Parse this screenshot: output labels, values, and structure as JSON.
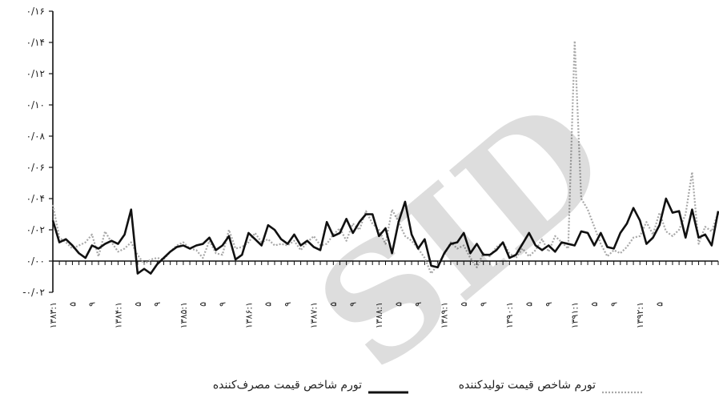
{
  "chart_data": {
    "type": "line",
    "title": "",
    "xlabel": "",
    "ylabel": "",
    "ylim": [
      -0.02,
      0.16
    ],
    "y_ticks": [
      "-۰/۰۲",
      "۰/۰۰",
      "۰/۰۲",
      "۰/۰۴",
      "۰/۰۶",
      "۰/۰۸",
      "۰/۱۰",
      "۰/۱۲",
      "۰/۱۴",
      "۰/۱۶"
    ],
    "y_tick_values": [
      -0.02,
      0,
      0.02,
      0.04,
      0.06,
      0.08,
      0.1,
      0.12,
      0.14,
      0.16
    ],
    "x_ticks": [
      {
        "i": 0,
        "label": "۱۳۸۳:۱"
      },
      {
        "i": 3,
        "label": "۵"
      },
      {
        "i": 6,
        "label": "۹"
      },
      {
        "i": 10,
        "label": "۱۳۸۴:۱"
      },
      {
        "i": 13,
        "label": "۵"
      },
      {
        "i": 16,
        "label": "۹"
      },
      {
        "i": 20,
        "label": "۱۳۸۵:۱"
      },
      {
        "i": 23,
        "label": "۵"
      },
      {
        "i": 26,
        "label": "۹"
      },
      {
        "i": 30,
        "label": "۱۳۸۶:۱"
      },
      {
        "i": 33,
        "label": "۵"
      },
      {
        "i": 36,
        "label": "۹"
      },
      {
        "i": 40,
        "label": "۱۳۸۷:۱"
      },
      {
        "i": 43,
        "label": "۵"
      },
      {
        "i": 46,
        "label": "۹"
      },
      {
        "i": 50,
        "label": "۱۳۸۸:۱"
      },
      {
        "i": 53,
        "label": "۵"
      },
      {
        "i": 56,
        "label": "۹"
      },
      {
        "i": 60,
        "label": "۱۳۸۹:۱"
      },
      {
        "i": 63,
        "label": "۵"
      },
      {
        "i": 66,
        "label": "۹"
      },
      {
        "i": 70,
        "label": "۱۳۹۰:۱"
      },
      {
        "i": 73,
        "label": "۵"
      },
      {
        "i": 76,
        "label": "۹"
      },
      {
        "i": 80,
        "label": "۱۳۹۱:۱"
      },
      {
        "i": 83,
        "label": "۵"
      },
      {
        "i": 86,
        "label": "۹"
      },
      {
        "i": 90,
        "label": "۱۳۹۲:۱"
      },
      {
        "i": 93,
        "label": "۵"
      }
    ],
    "series": [
      {
        "name": "تورم شاخص قیمت مصرف‌کننده",
        "color": "#111111",
        "style": "solid",
        "values": [
          0.026,
          0.012,
          0.014,
          0.01,
          0.005,
          0.002,
          0.01,
          0.008,
          0.011,
          0.013,
          0.011,
          0.017,
          0.033,
          -0.008,
          -0.005,
          -0.008,
          -0.002,
          0.002,
          0.006,
          0.009,
          0.01,
          0.008,
          0.01,
          0.011,
          0.015,
          0.007,
          0.01,
          0.016,
          0.001,
          0.004,
          0.018,
          0.014,
          0.01,
          0.023,
          0.02,
          0.014,
          0.011,
          0.017,
          0.01,
          0.013,
          0.009,
          0.007,
          0.025,
          0.016,
          0.018,
          0.027,
          0.018,
          0.025,
          0.03,
          0.03,
          0.016,
          0.021,
          0.005,
          0.025,
          0.038,
          0.017,
          0.008,
          0.014,
          -0.003,
          -0.004,
          0.005,
          0.011,
          0.012,
          0.018,
          0.005,
          0.011,
          0.004,
          0.004,
          0.007,
          0.012,
          0.002,
          0.004,
          0.011,
          0.018,
          0.01,
          0.007,
          0.01,
          0.006,
          0.012,
          0.011,
          0.01,
          0.019,
          0.018,
          0.01,
          0.018,
          0.009,
          0.008,
          0.018,
          0.024,
          0.034,
          0.026,
          0.011,
          0.015,
          0.023,
          0.04,
          0.031,
          0.032,
          0.015,
          0.033,
          0.015,
          0.017,
          0.01,
          0.032
        ],
        "plot_values": [
          0.026,
          0.012,
          0.014,
          0.01,
          0.005,
          0.002,
          0.01,
          0.008,
          0.011,
          0.013,
          0.011,
          0.017,
          0.033,
          -0.008,
          -0.005,
          -0.008,
          -0.002,
          0.002,
          0.006,
          0.009,
          0.01,
          0.008,
          0.01,
          0.011,
          0.015,
          0.007,
          0.01,
          0.016,
          0.001,
          0.004,
          0.018,
          0.014,
          0.01,
          0.023,
          0.02,
          0.014,
          0.011,
          0.017,
          0.01,
          0.013,
          0.009,
          0.007,
          0.025,
          0.016,
          0.018,
          0.027,
          0.018,
          0.025,
          0.03,
          0.03,
          0.016,
          0.021,
          0.005,
          0.025,
          0.038,
          0.017,
          0.008,
          0.014,
          -0.003,
          -0.004,
          0.005,
          0.011,
          0.012,
          0.018,
          0.005,
          0.011,
          0.004,
          0.004,
          0.007,
          0.012,
          0.002,
          0.004,
          0.011,
          0.018,
          0.01,
          0.007,
          0.01,
          0.006,
          0.012,
          0.011,
          0.01,
          0.019,
          0.018,
          0.01,
          0.018,
          0.009,
          0.008,
          0.018,
          0.024,
          0.034,
          0.026,
          0.011,
          0.015,
          0.023,
          0.04,
          0.031,
          0.032,
          0.015,
          0.033,
          0.015,
          0.017,
          0.01,
          0.032
        ]
      },
      {
        "name": "تورم شاخص قیمت تولیدکننده",
        "color": "#a8a8a8",
        "style": "dotted",
        "values": [
          0.036,
          0.015,
          0.012,
          0.008,
          0.01,
          0.012,
          0.017,
          0.003,
          0.019,
          0.012,
          0.006,
          0.008,
          0.012,
          0.004,
          -0.002,
          0.001,
          0.002,
          0.001,
          0.006,
          0.01,
          0.012,
          0.008,
          0.007,
          0.002,
          0.013,
          0.005,
          0.004,
          0.02,
          0.008,
          0.009,
          0.012,
          0.018,
          0.012,
          0.014,
          0.01,
          0.011,
          0.01,
          0.013,
          0.007,
          0.012,
          0.016,
          0.01,
          0.011,
          0.017,
          0.021,
          0.013,
          0.024,
          0.02,
          0.032,
          0.024,
          0.02,
          0.011,
          0.033,
          0.025,
          0.016,
          0.013,
          0.008,
          0.002,
          -0.008,
          -0.002,
          0.004,
          0.012,
          0.008,
          0.01,
          0.002,
          -0.004,
          0.005,
          0.003,
          0.009,
          0.012,
          0.005,
          0.002,
          0.008,
          0.003,
          0.007,
          0.014,
          0.006,
          0.016,
          0.012,
          0.008,
          0.141,
          0.04,
          0.033,
          0.022,
          0.011,
          0.003,
          0.007,
          0.005,
          0.009,
          0.015,
          0.016,
          0.025,
          0.017,
          0.031,
          0.019,
          0.016,
          0.02,
          0.03,
          0.057,
          0.011,
          0.022,
          0.019,
          0.031,
          0.026
        ],
        "plot_values": [
          0.036,
          0.015,
          0.012,
          0.008,
          0.01,
          0.012,
          0.017,
          0.003,
          0.019,
          0.012,
          0.006,
          0.008,
          0.012,
          0.004,
          -0.002,
          0.001,
          0.002,
          0.001,
          0.006,
          0.01,
          0.012,
          0.008,
          0.007,
          0.002,
          0.013,
          0.005,
          0.004,
          0.02,
          0.008,
          0.009,
          0.012,
          0.018,
          0.012,
          0.014,
          0.01,
          0.011,
          0.01,
          0.013,
          0.007,
          0.012,
          0.016,
          0.01,
          0.011,
          0.017,
          0.021,
          0.013,
          0.024,
          0.02,
          0.032,
          0.024,
          0.02,
          0.011,
          0.033,
          0.025,
          0.016,
          0.013,
          0.008,
          0.002,
          -0.008,
          -0.002,
          0.004,
          0.012,
          0.008,
          0.01,
          0.002,
          -0.004,
          0.005,
          0.003,
          0.009,
          0.012,
          0.005,
          0.002,
          0.008,
          0.003,
          0.007,
          0.014,
          0.006,
          0.016,
          0.012,
          0.008,
          0.141,
          0.04,
          0.033,
          0.022,
          0.011,
          0.003,
          0.007,
          0.005,
          0.009,
          0.015,
          0.016,
          0.025,
          0.017,
          0.031,
          0.019,
          0.016,
          0.02,
          0.03,
          0.057,
          0.011,
          0.022,
          0.019,
          0.031,
          0.026
        ]
      }
    ],
    "grid": false,
    "legend_position": "bottom"
  },
  "watermark_text": "SID"
}
